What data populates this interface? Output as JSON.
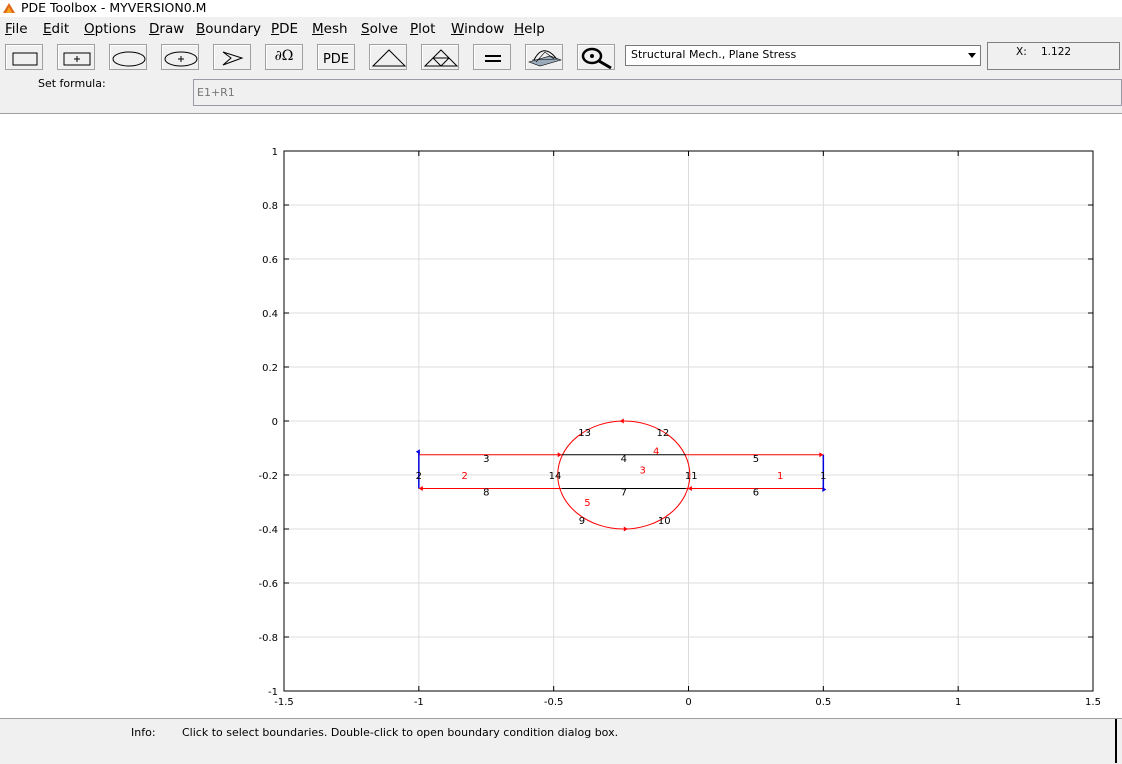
{
  "window": {
    "title": "PDE Toolbox - MYVERSION0.M"
  },
  "menu": [
    "File",
    "Edit",
    "Options",
    "Draw",
    "Boundary",
    "PDE",
    "Mesh",
    "Solve",
    "Plot",
    "Window",
    "Help"
  ],
  "toolbar": {
    "pde_label": "PDE"
  },
  "application_mode": "Structural Mech., Plane Stress",
  "coords": {
    "x_label": "X:",
    "x_value": "1.122"
  },
  "formula": {
    "label": "Set formula:",
    "value": "E1+R1"
  },
  "axes": {
    "xlim": [
      -1.5,
      1.5
    ],
    "ylim": [
      -1,
      1
    ],
    "x_ticks": [
      "-1.5",
      "-1",
      "-0.5",
      "0",
      "0.5",
      "1",
      "1.5"
    ],
    "y_ticks": [
      "1",
      "0.8",
      "0.6",
      "0.4",
      "0.2",
      "0",
      "-0.2",
      "-0.4",
      "-0.6",
      "-0.8",
      "-1"
    ],
    "grid": true
  },
  "geometry": {
    "rectangle": {
      "x_range": [
        -1,
        0.5
      ],
      "y_range": [
        -0.25,
        -0.125
      ]
    },
    "ellipse": {
      "center": [
        -0.24,
        -0.2
      ],
      "semi_axes": [
        0.245,
        0.2
      ]
    },
    "edge_labels": [
      {
        "text": "1",
        "x": 0.5,
        "y": -0.2
      },
      {
        "text": "2",
        "x": -1,
        "y": -0.2
      },
      {
        "text": "3",
        "x": -0.75,
        "y": -0.137
      },
      {
        "text": "4",
        "x": -0.24,
        "y": -0.137
      },
      {
        "text": "5",
        "x": 0.25,
        "y": -0.137
      },
      {
        "text": "6",
        "x": 0.25,
        "y": -0.262
      },
      {
        "text": "7",
        "x": -0.24,
        "y": -0.262
      },
      {
        "text": "8",
        "x": -0.75,
        "y": -0.262
      },
      {
        "text": "9",
        "x": -0.395,
        "y": -0.367
      },
      {
        "text": "10",
        "x": -0.09,
        "y": -0.367
      },
      {
        "text": "11",
        "x": 0.01,
        "y": -0.2
      },
      {
        "text": "12",
        "x": -0.095,
        "y": -0.041
      },
      {
        "text": "13",
        "x": -0.385,
        "y": -0.041
      },
      {
        "text": "14",
        "x": -0.495,
        "y": -0.2
      }
    ],
    "subdomain_labels": [
      {
        "text": "1",
        "x": 0.34,
        "y": -0.2
      },
      {
        "text": "2",
        "x": -0.83,
        "y": -0.2
      },
      {
        "text": "3",
        "x": -0.17,
        "y": -0.18
      },
      {
        "text": "4",
        "x": -0.12,
        "y": -0.11
      },
      {
        "text": "5",
        "x": -0.375,
        "y": -0.3
      }
    ]
  },
  "status": {
    "label": "Info:",
    "message": "Click to select boundaries. Double-click to open boundary condition dialog box."
  },
  "colors": {
    "boundary_red": "#ff0000",
    "boundary_blue": "#0000dd",
    "internal_black": "#000000",
    "subdomain_text": "#ff0000"
  }
}
